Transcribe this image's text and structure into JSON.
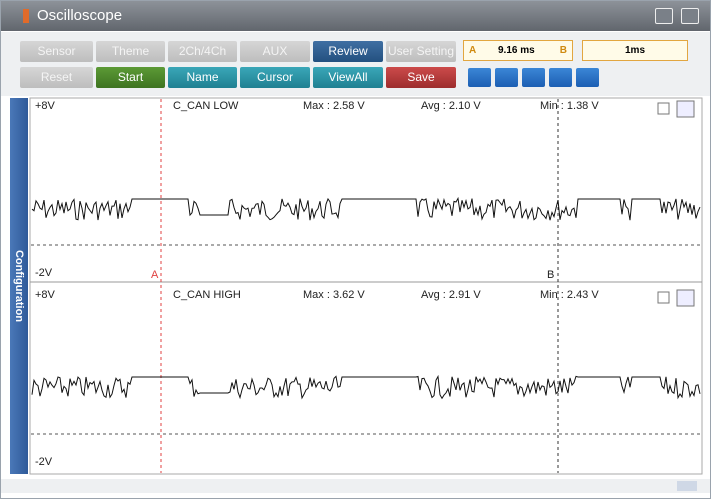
{
  "window": {
    "title": "Oscilloscope"
  },
  "toolbar": {
    "row1": [
      "Sensor",
      "Theme",
      "2Ch/4Ch",
      "AUX",
      "Review",
      "User Setting"
    ],
    "row2": [
      "Reset",
      "Start",
      "Name",
      "Cursor",
      "ViewAll",
      "Save"
    ],
    "cursor_readout": {
      "a": "A",
      "time": "9.16 ms",
      "b": "B"
    },
    "time_div": "1ms"
  },
  "side_tab": "Configuration",
  "channels": [
    {
      "top": "+8V",
      "name": "C_CAN LOW",
      "max": "Max : 2.58 V",
      "avg": "Avg : 2.10 V",
      "min": "Min : 1.38 V",
      "bottom": "-2V"
    },
    {
      "top": "+8V",
      "name": "C_CAN HIGH",
      "max": "Max : 3.62 V",
      "avg": "Avg : 2.91 V",
      "min": "Min : 2.43 V",
      "bottom": "-2V"
    }
  ],
  "cursors": {
    "a": "A",
    "b": "B"
  }
}
